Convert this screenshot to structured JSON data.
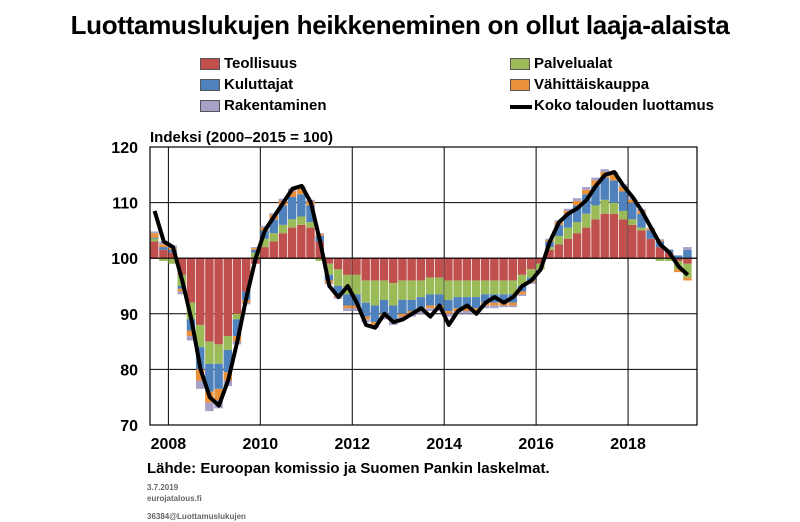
{
  "title": "Luottamuslukujen heikkeneminen on ollut laaja-alaista",
  "ylabel": "Indeksi (2000–2015 = 100)",
  "source": "Lähde: Euroopan komissio ja Suomen Pankin laskelmat.",
  "meta": {
    "date": "3.7.2019",
    "author": "eurojatalous.fi",
    "code": "36384@Luottamuslukujen"
  },
  "legend": [
    {
      "label": "Teollisuus",
      "color": "#c0504d",
      "kind": "swatch"
    },
    {
      "label": "Palvelualat",
      "color": "#9bbb59",
      "kind": "swatch"
    },
    {
      "label": "Kuluttajat",
      "color": "#4f81bd",
      "kind": "swatch"
    },
    {
      "label": "Vähittäiskauppa",
      "color": "#e8913a",
      "kind": "swatch"
    },
    {
      "label": "Rakentaminen",
      "color": "#a9a0c8",
      "kind": "swatch"
    },
    {
      "label": "Koko talouden luottamus",
      "color": "#000000",
      "kind": "line"
    }
  ],
  "chart_data": {
    "type": "bar",
    "baseline": 100,
    "ylim": [
      70,
      120
    ],
    "yticks": [
      "70",
      "80",
      "90",
      "100",
      "110",
      "120"
    ],
    "xlim": [
      2007.6,
      2019.5
    ],
    "xticks": [
      "2008",
      "2010",
      "2012",
      "2014",
      "2016",
      "2018"
    ],
    "grid": true,
    "legend_position": "top",
    "series_keys": [
      "Teollisuus",
      "Kuluttajat",
      "Palvelualat",
      "Vähittäiskauppa",
      "Rakentaminen"
    ],
    "x": [
      2007.6,
      2007.8,
      2008.0,
      2008.2,
      2008.4,
      2008.6,
      2008.8,
      2009.0,
      2009.2,
      2009.4,
      2009.6,
      2009.8,
      2010.0,
      2010.2,
      2010.4,
      2010.6,
      2010.8,
      2011.0,
      2011.2,
      2011.4,
      2011.6,
      2011.8,
      2012.0,
      2012.2,
      2012.4,
      2012.6,
      2012.8,
      2013.0,
      2013.2,
      2013.4,
      2013.6,
      2013.8,
      2014.0,
      2014.2,
      2014.4,
      2014.6,
      2014.8,
      2015.0,
      2015.2,
      2015.4,
      2015.6,
      2015.8,
      2016.0,
      2016.2,
      2016.4,
      2016.6,
      2016.8,
      2017.0,
      2017.2,
      2017.4,
      2017.6,
      2017.8,
      2018.0,
      2018.2,
      2018.4,
      2018.6,
      2018.8,
      2019.0,
      2019.2
    ],
    "components": [
      [
        3.0,
        0.5,
        0.2,
        0.8,
        0.3
      ],
      [
        1.5,
        -0.5,
        0.5,
        0.5,
        0.5
      ],
      [
        1.0,
        -1.0,
        0.5,
        0.3,
        0.5
      ],
      [
        -3.0,
        -2.0,
        -0.5,
        -0.5,
        -0.5
      ],
      [
        -8.0,
        -3.0,
        -2.0,
        -1.0,
        -0.8
      ],
      [
        -12.0,
        -4.0,
        -4.0,
        -2.0,
        -1.5
      ],
      [
        -15.0,
        -4.0,
        -5.0,
        -2.0,
        -1.5
      ],
      [
        -15.5,
        -3.5,
        -4.5,
        -2.0,
        -1.5
      ],
      [
        -14.0,
        -2.5,
        -4.0,
        -1.5,
        -1.0
      ],
      [
        -10.0,
        -1.0,
        -3.0,
        -1.0,
        -0.5
      ],
      [
        -6.0,
        0.0,
        -1.5,
        -0.5,
        -0.3
      ],
      [
        -1.0,
        1.0,
        0.5,
        0.3,
        0.2
      ],
      [
        2.0,
        1.5,
        1.5,
        0.5,
        0.3
      ],
      [
        3.0,
        1.5,
        2.5,
        0.8,
        0.3
      ],
      [
        4.5,
        1.5,
        3.5,
        0.8,
        0.4
      ],
      [
        5.5,
        1.5,
        4.0,
        1.0,
        0.5
      ],
      [
        6.0,
        1.5,
        4.0,
        1.0,
        0.5
      ],
      [
        5.5,
        1.0,
        3.0,
        0.7,
        0.3
      ],
      [
        3.0,
        -0.5,
        1.0,
        0.3,
        0.2
      ],
      [
        -1.0,
        -2.0,
        -1.0,
        -0.5,
        -0.2
      ],
      [
        -2.0,
        -3.0,
        -1.5,
        -0.5,
        -0.3
      ],
      [
        -3.0,
        -3.5,
        -2.0,
        -0.5,
        -0.5
      ],
      [
        -3.0,
        -3.5,
        -2.0,
        -0.5,
        -0.5
      ],
      [
        -4.0,
        -4.0,
        -2.5,
        -0.5,
        -0.5
      ],
      [
        -4.0,
        -4.5,
        -3.0,
        -0.5,
        -0.5
      ],
      [
        -4.0,
        -3.5,
        -2.5,
        -0.5,
        -0.5
      ],
      [
        -4.5,
        -4.0,
        -2.5,
        -0.5,
        -0.5
      ],
      [
        -4.0,
        -3.5,
        -2.5,
        -0.5,
        -0.5
      ],
      [
        -4.0,
        -3.5,
        -2.0,
        -0.5,
        -0.5
      ],
      [
        -4.0,
        -3.0,
        -2.0,
        -0.5,
        -0.5
      ],
      [
        -3.5,
        -3.0,
        -2.0,
        -0.5,
        -0.5
      ],
      [
        -3.5,
        -3.0,
        -2.0,
        -0.5,
        -0.5
      ],
      [
        -4.0,
        -3.5,
        -2.0,
        -0.5,
        -0.5
      ],
      [
        -4.0,
        -3.0,
        -2.0,
        -0.5,
        -0.5
      ],
      [
        -4.0,
        -3.0,
        -2.0,
        -0.5,
        -0.5
      ],
      [
        -4.0,
        -3.0,
        -2.0,
        -0.5,
        -0.5
      ],
      [
        -4.0,
        -2.5,
        -1.5,
        -0.5,
        -0.5
      ],
      [
        -4.0,
        -2.5,
        -1.5,
        -0.5,
        -0.5
      ],
      [
        -4.0,
        -2.5,
        -1.5,
        -0.5,
        -0.3
      ],
      [
        -4.0,
        -2.5,
        -1.5,
        -0.5,
        -0.3
      ],
      [
        -3.0,
        -2.0,
        -1.0,
        -0.5,
        -0.3
      ],
      [
        -2.0,
        -1.5,
        -0.5,
        -0.3,
        -0.3
      ],
      [
        -1.0,
        -1.0,
        0.0,
        0.0,
        0.0
      ],
      [
        1.5,
        0.5,
        1.0,
        0.3,
        0.2
      ],
      [
        2.5,
        1.5,
        2.0,
        0.5,
        0.3
      ],
      [
        3.5,
        2.0,
        2.5,
        0.5,
        0.4
      ],
      [
        4.5,
        2.0,
        3.0,
        0.8,
        0.5
      ],
      [
        5.5,
        2.5,
        3.5,
        0.8,
        0.5
      ],
      [
        7.0,
        2.5,
        3.5,
        1.0,
        0.5
      ],
      [
        8.0,
        2.5,
        4.0,
        1.0,
        0.5
      ],
      [
        8.0,
        2.0,
        4.0,
        1.0,
        0.5
      ],
      [
        7.0,
        1.5,
        3.5,
        0.8,
        0.5
      ],
      [
        6.0,
        1.0,
        3.0,
        0.5,
        0.4
      ],
      [
        5.0,
        0.5,
        2.5,
        0.5,
        0.3
      ],
      [
        3.5,
        0.0,
        1.5,
        0.3,
        0.2
      ],
      [
        2.0,
        -0.5,
        1.0,
        0.2,
        0.2
      ],
      [
        1.0,
        -0.5,
        0.5,
        0.0,
        0.1
      ],
      [
        -0.5,
        -1.5,
        0.5,
        -0.5,
        0.0
      ],
      [
        -1.0,
        -2.5,
        1.5,
        -0.5,
        0.5
      ]
    ],
    "total_line": {
      "name": "Koko talouden luottamus",
      "x": [
        2007.6,
        2007.8,
        2008.0,
        2008.2,
        2008.4,
        2008.6,
        2008.8,
        2009.0,
        2009.2,
        2009.4,
        2009.6,
        2009.8,
        2010.0,
        2010.2,
        2010.4,
        2010.6,
        2010.8,
        2011.0,
        2011.2,
        2011.4,
        2011.6,
        2011.8,
        2012.0,
        2012.2,
        2012.4,
        2012.6,
        2012.8,
        2013.0,
        2013.2,
        2013.4,
        2013.6,
        2013.8,
        2014.0,
        2014.2,
        2014.4,
        2014.6,
        2014.8,
        2015.0,
        2015.2,
        2015.4,
        2015.6,
        2015.8,
        2016.0,
        2016.2,
        2016.4,
        2016.6,
        2016.8,
        2017.0,
        2017.2,
        2017.4,
        2017.6,
        2017.8,
        2018.0,
        2018.2,
        2018.4,
        2018.6,
        2018.8,
        2019.0,
        2019.2
      ],
      "y": [
        108.5,
        103.0,
        102.0,
        96.0,
        89.0,
        80.0,
        75.0,
        73.5,
        78.0,
        85.0,
        93.0,
        100.0,
        105.0,
        107.5,
        110.0,
        112.5,
        113.0,
        110.0,
        103.0,
        95.0,
        93.0,
        95.0,
        92.0,
        88.0,
        87.5,
        90.0,
        88.5,
        89.0,
        90.0,
        91.0,
        89.5,
        91.5,
        88.0,
        90.5,
        91.5,
        90.0,
        92.0,
        93.0,
        92.0,
        93.0,
        95.0,
        96.0,
        98.0,
        103.0,
        106.5,
        108.0,
        109.0,
        110.5,
        113.0,
        115.0,
        115.5,
        113.0,
        111.0,
        108.5,
        105.5,
        102.5,
        101.0,
        98.5,
        97.0
      ]
    }
  }
}
